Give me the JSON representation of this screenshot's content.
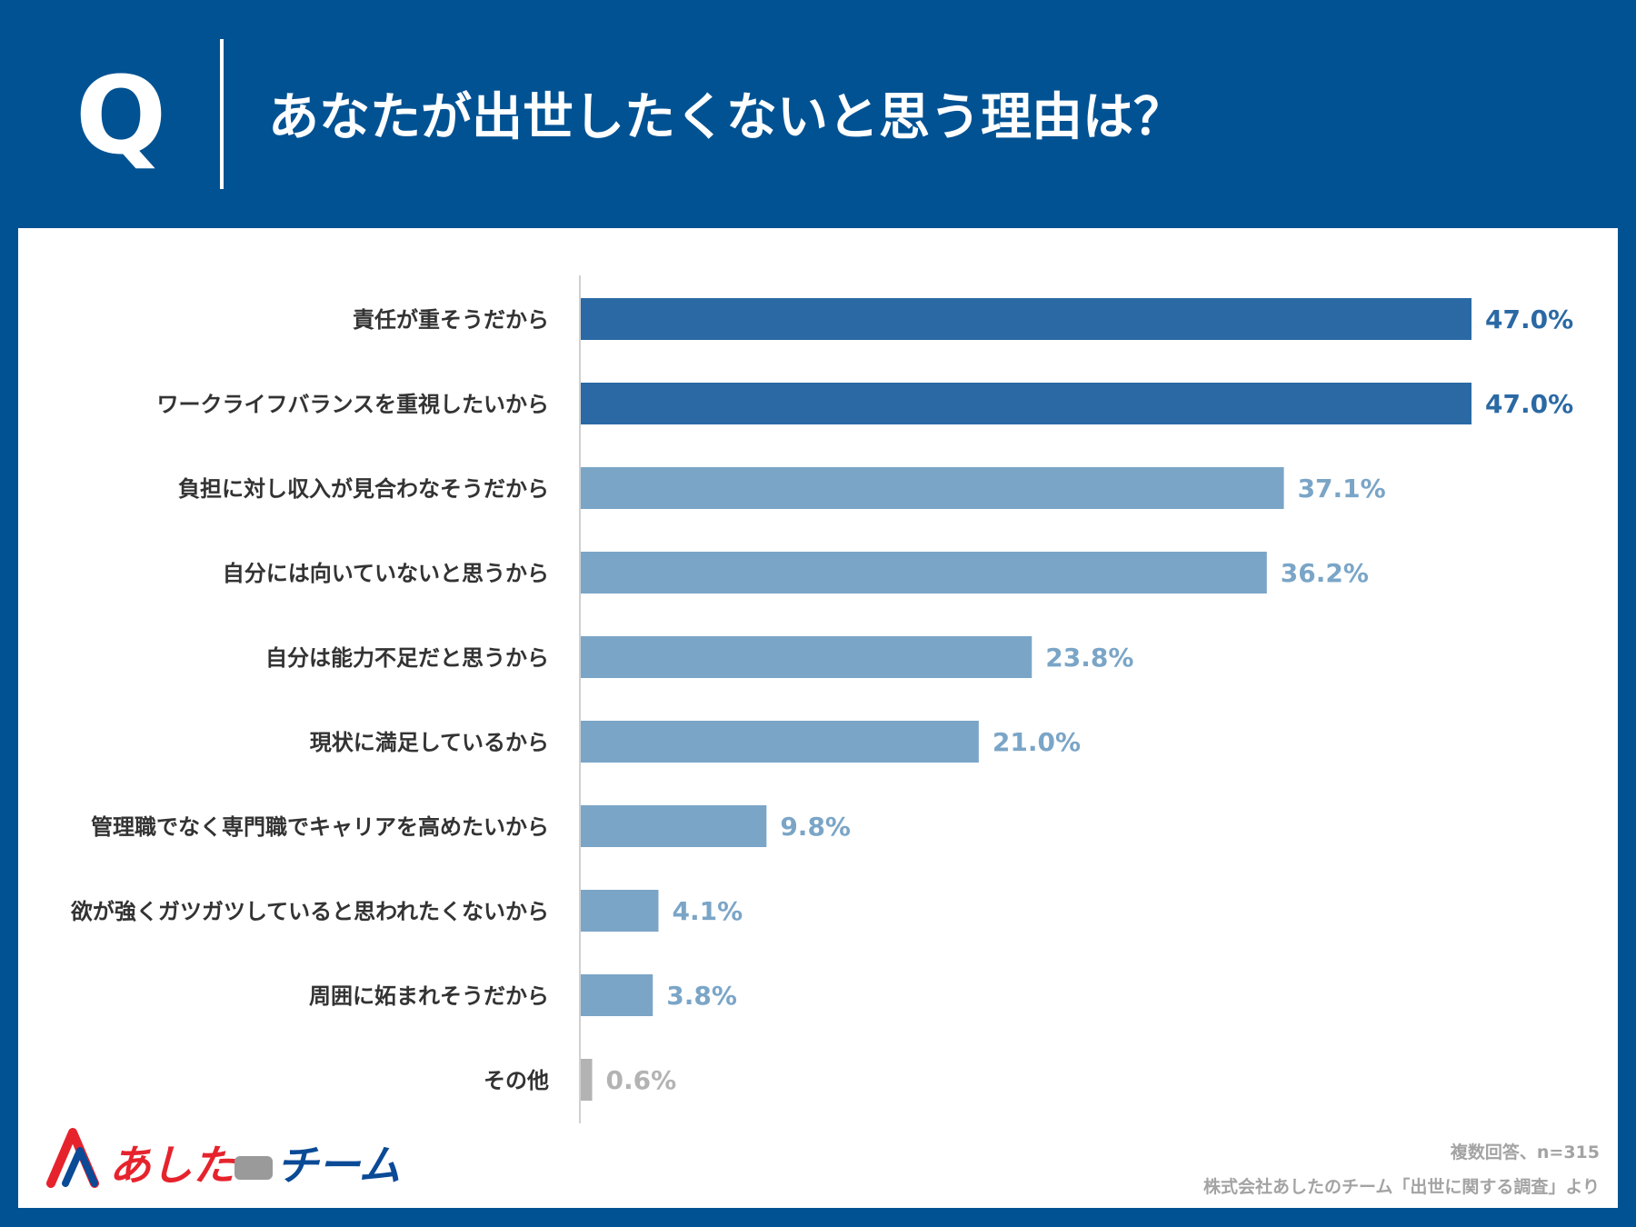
{
  "header": {
    "q_label": "Q",
    "question": "あなたが出世したくないと思う理由は？"
  },
  "chart_data": {
    "type": "bar",
    "orientation": "horizontal",
    "title": "あなたが出世したくないと思う理由は？",
    "categories": [
      "責任が重そうだから",
      "ワークライフバランスを重視したいから",
      "負担に対し収入が見合わなそうだから",
      "自分には向いていないと思うから",
      "自分は能力不足だと思うから",
      "現状に満足しているから",
      "管理職でなく専門職でキャリアを高めたいから",
      "欲が強くガツガツしていると思われたくないから",
      "周囲に妬まれそうだから",
      "その他"
    ],
    "values": [
      47.0,
      47.0,
      37.1,
      36.2,
      23.8,
      21.0,
      9.8,
      4.1,
      3.8,
      0.6
    ],
    "value_labels": [
      "47.0%",
      "47.0%",
      "37.1%",
      "36.2%",
      "23.8%",
      "21.0%",
      "9.8%",
      "4.1%",
      "3.8%",
      "0.6%"
    ],
    "unit": "%",
    "xlim": [
      0,
      47.0
    ],
    "xlabel": "",
    "ylabel": "",
    "grid": false,
    "colors": {
      "highlight": "#2a69a4",
      "normal": "#7aa5c7",
      "other": "#b3b3b3",
      "category_text": "#333333"
    }
  },
  "footer": {
    "logo_text": "あしたのチーム",
    "note": "複数回答、n=315",
    "source": "株式会社あしたのチーム「出世に関する調査」より"
  },
  "colors": {
    "background": "#005293",
    "panel": "#ffffff",
    "logo_red": "#e6232d",
    "logo_blue": "#0a4a96"
  }
}
